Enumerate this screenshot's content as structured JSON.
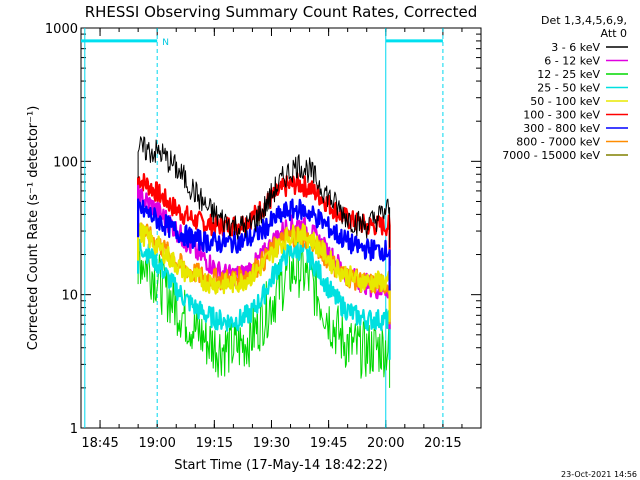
{
  "chart_data": {
    "type": "line",
    "title": "RHESSI Observing Summary Count Rates, Corrected",
    "xlabel": "Start Time (17-May-14 18:42:22)",
    "ylabel": "Corrected Count Rate (s⁻¹ detector⁻¹)",
    "yscale": "log",
    "ylim": [
      1,
      1000
    ],
    "xlim": [
      "18:40",
      "20:25"
    ],
    "x_ticks": [
      "18:45",
      "19:00",
      "19:15",
      "19:30",
      "19:45",
      "20:00",
      "20:15"
    ],
    "y_ticks": [
      "1",
      "10",
      "100",
      "1000"
    ],
    "grid": false,
    "legend": {
      "placement": "top-right",
      "header": [
        "Det 1,3,4,5,6,9,",
        "Att 0"
      ]
    },
    "timestamp": "23-Oct-2021 14:56",
    "annotations": {
      "night_marker": "N",
      "night_bars": [
        [
          "18:40",
          "19:00"
        ],
        [
          "20:00",
          "20:15"
        ]
      ],
      "night_bar_level": 800,
      "solid_lines": [
        "18:41",
        "20:00"
      ],
      "dashed_lines": [
        "19:00",
        "20:15"
      ]
    },
    "x_minutes": [
      0,
      3,
      6,
      9,
      12,
      15,
      18,
      21,
      24,
      27,
      30,
      33,
      36,
      39,
      42,
      45,
      48,
      51,
      54,
      57,
      60,
      63,
      66
    ],
    "x_minutes_start": "18:55",
    "series": [
      {
        "name": "3 - 6 keV",
        "color": "#000000",
        "values": [
          125,
          120,
          115,
          95,
          75,
          58,
          45,
          38,
          34,
          32,
          34,
          44,
          62,
          80,
          95,
          85,
          65,
          50,
          40,
          35,
          33,
          38,
          45
        ]
      },
      {
        "name": "6 - 12 keV",
        "color": "#e000e0",
        "values": [
          55,
          48,
          40,
          33,
          26,
          21,
          18,
          15,
          14,
          14,
          16,
          20,
          26,
          32,
          34,
          30,
          24,
          19,
          15,
          13,
          12,
          11,
          11
        ]
      },
      {
        "name": "12 - 25 keV",
        "color": "#00d800",
        "values": [
          20,
          16,
          12,
          9,
          7,
          5.5,
          4.5,
          4,
          4,
          4.2,
          5,
          7,
          10,
          14,
          16,
          13,
          9,
          6,
          4.5,
          4,
          3.8,
          4,
          4
        ]
      },
      {
        "name": "25 - 50 keV",
        "color": "#00e0e0",
        "values": [
          24,
          20,
          16,
          12,
          9.5,
          8,
          7,
          6.5,
          6.3,
          6.5,
          7.5,
          10,
          15,
          20,
          22,
          19,
          14,
          10,
          8,
          7,
          6.5,
          6.5,
          6.5
        ]
      },
      {
        "name": "50 - 100 keV",
        "color": "#e8e800",
        "values": [
          30,
          26,
          22,
          18,
          15,
          13.5,
          12.5,
          12,
          12,
          12.5,
          14,
          17,
          22,
          27,
          29,
          27,
          22,
          17,
          14.5,
          13,
          12.5,
          12.5,
          12.5
        ]
      },
      {
        "name": "100 - 300 keV",
        "color": "#ff0000",
        "values": [
          75,
          65,
          55,
          46,
          40,
          36,
          34,
          33,
          33,
          34,
          38,
          46,
          56,
          65,
          68,
          63,
          54,
          45,
          38,
          35,
          33,
          33,
          33
        ]
      },
      {
        "name": "300 - 800 keV",
        "color": "#0000ff",
        "values": [
          45,
          40,
          35,
          31,
          28,
          26,
          25,
          24.5,
          24.5,
          25,
          27,
          31,
          37,
          42,
          44,
          41,
          36,
          30,
          26,
          23,
          22,
          21.5,
          21.5
        ]
      },
      {
        "name": "800 - 7000 keV",
        "color": "#ff8c00",
        "values": [
          32,
          27,
          23,
          19,
          16,
          14.5,
          13.5,
          13,
          13,
          13.5,
          15,
          18,
          23,
          27,
          28,
          26,
          21,
          17,
          14,
          13,
          12,
          12,
          12
        ]
      },
      {
        "name": "7000 - 15000 keV",
        "color": "#808000",
        "values": []
      }
    ]
  }
}
